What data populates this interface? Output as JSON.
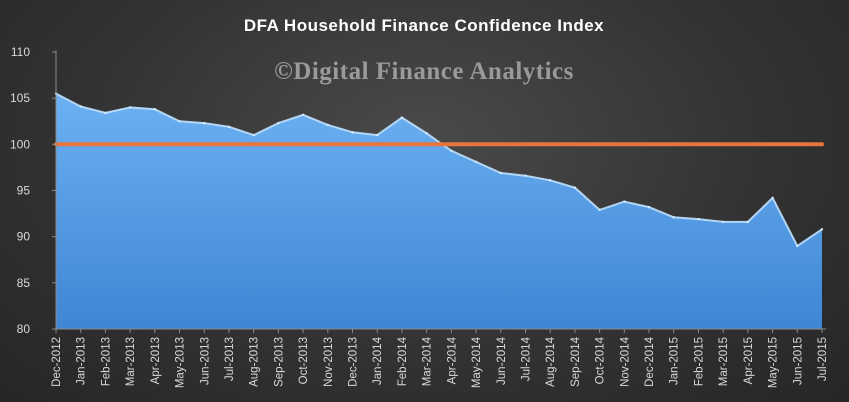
{
  "chart_data": {
    "type": "area",
    "title": "DFA Household Finance Confidence Index",
    "watermark": "©Digital Finance Analytics",
    "xlabel": "",
    "ylabel": "",
    "ylim": [
      80,
      110
    ],
    "yticks": [
      80,
      85,
      90,
      95,
      100,
      105,
      110
    ],
    "grid": false,
    "legend": "none",
    "categories": [
      "Dec-2012",
      "Jan-2013",
      "Feb-2013",
      "Mar-2013",
      "Apr-2013",
      "May-2013",
      "Jun-2013",
      "Jul-2013",
      "Aug-2013",
      "Sep-2013",
      "Oct-2013",
      "Nov-2013",
      "Dec-2013",
      "Jan-2014",
      "Feb-2014",
      "Mar-2014",
      "Apr-2014",
      "May-2014",
      "Jun-2014",
      "Jul-2014",
      "Aug-2014",
      "Sep-2014",
      "Oct-2014",
      "Nov-2014",
      "Dec-2014",
      "Jan-2015",
      "Feb-2015",
      "Mar-2015",
      "Apr-2015",
      "May-2015",
      "Jun-2015",
      "Jul-2015"
    ],
    "series": [
      {
        "type": "area",
        "color": "#5ba3e8",
        "values": [
          105.5,
          104.1,
          103.4,
          104.0,
          103.8,
          102.5,
          102.3,
          101.9,
          101.0,
          102.3,
          103.2,
          102.1,
          101.3,
          101.0,
          102.9,
          101.2,
          99.3,
          98.1,
          96.9,
          96.6,
          96.1,
          95.3,
          92.9,
          93.8,
          93.2,
          92.1,
          91.9,
          91.6,
          91.6,
          94.2,
          89.0,
          90.8
        ]
      },
      {
        "type": "line",
        "color": "#e8743b",
        "values": [
          100,
          100,
          100,
          100,
          100,
          100,
          100,
          100,
          100,
          100,
          100,
          100,
          100,
          100,
          100,
          100,
          100,
          100,
          100,
          100,
          100,
          100,
          100,
          100,
          100,
          100,
          100,
          100,
          100,
          100,
          100,
          100
        ]
      }
    ]
  }
}
